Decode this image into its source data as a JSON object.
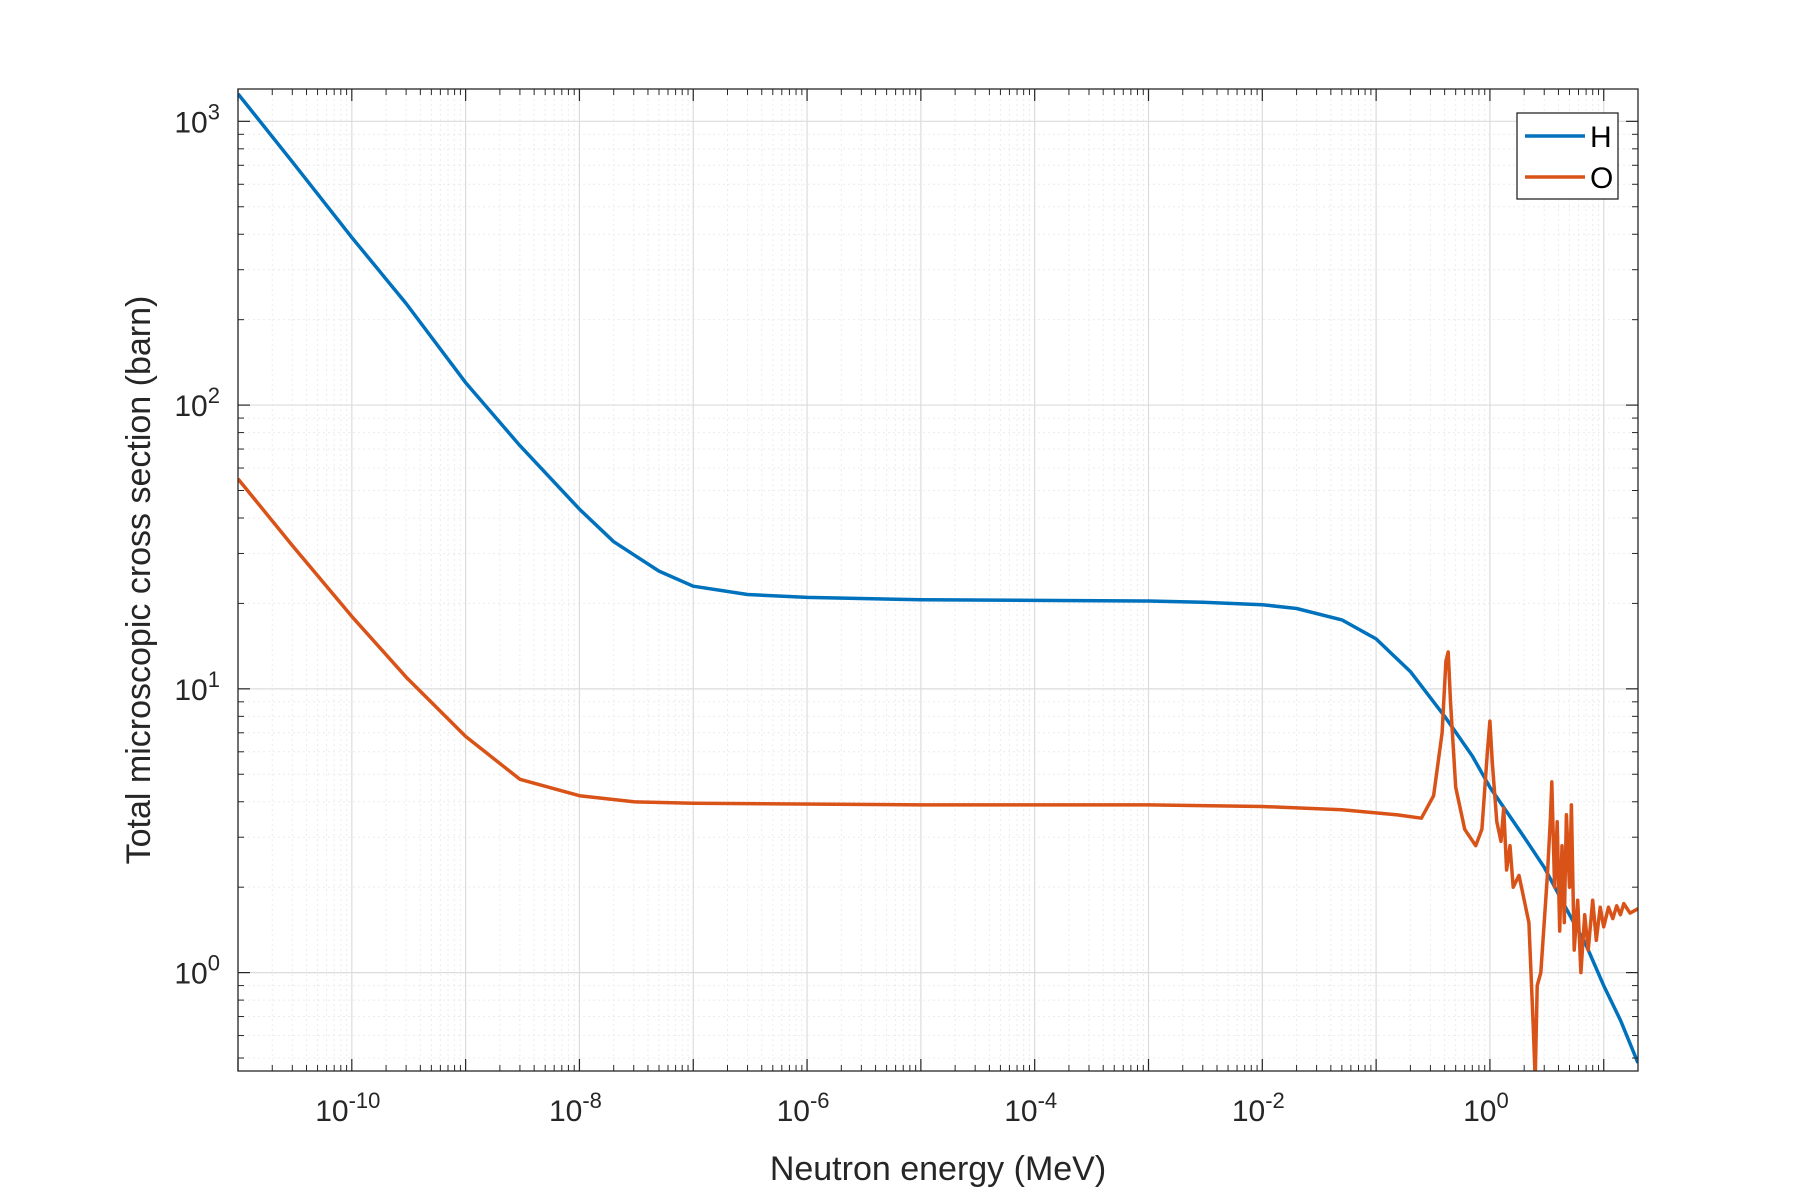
{
  "chart_data": {
    "type": "line",
    "xlabel": "Neutron energy (MeV)",
    "ylabel": "Total microscopic cross section (barn)",
    "xscale": "log",
    "yscale": "log",
    "xlim": [
      1e-11,
      20
    ],
    "ylim": [
      0.45,
      1300
    ],
    "grid": true,
    "legend_position": "top-right",
    "x_ticks": [
      {
        "base": "10",
        "exp": "-10",
        "value": 1e-10
      },
      {
        "base": "10",
        "exp": "-8",
        "value": 1e-08
      },
      {
        "base": "10",
        "exp": "-6",
        "value": 1e-06
      },
      {
        "base": "10",
        "exp": "-4",
        "value": 0.0001
      },
      {
        "base": "10",
        "exp": "-2",
        "value": 0.01
      },
      {
        "base": "10",
        "exp": "0",
        "value": 1
      }
    ],
    "y_ticks": [
      {
        "base": "10",
        "exp": "0",
        "value": 1
      },
      {
        "base": "10",
        "exp": "1",
        "value": 10
      },
      {
        "base": "10",
        "exp": "2",
        "value": 100
      },
      {
        "base": "10",
        "exp": "3",
        "value": 1000
      }
    ],
    "series": [
      {
        "name": "H",
        "color": "#0072BD",
        "points": [
          [
            1e-11,
            1250
          ],
          [
            3e-11,
            720
          ],
          [
            1e-10,
            390
          ],
          [
            3e-10,
            228
          ],
          [
            1e-09,
            120
          ],
          [
            3e-09,
            72
          ],
          [
            1e-08,
            43
          ],
          [
            2e-08,
            33
          ],
          [
            5e-08,
            26
          ],
          [
            1e-07,
            23
          ],
          [
            3e-07,
            21.5
          ],
          [
            1e-06,
            21
          ],
          [
            1e-05,
            20.6
          ],
          [
            0.0001,
            20.5
          ],
          [
            0.001,
            20.4
          ],
          [
            0.003,
            20.2
          ],
          [
            0.01,
            19.8
          ],
          [
            0.02,
            19.2
          ],
          [
            0.05,
            17.5
          ],
          [
            0.1,
            15
          ],
          [
            0.2,
            11.5
          ],
          [
            0.4,
            8
          ],
          [
            0.7,
            5.8
          ],
          [
            1,
            4.5
          ],
          [
            2,
            3
          ],
          [
            3,
            2.35
          ],
          [
            5,
            1.6
          ],
          [
            7,
            1.25
          ],
          [
            10,
            0.9
          ],
          [
            14,
            0.68
          ],
          [
            20,
            0.48
          ]
        ]
      },
      {
        "name": "O",
        "color": "#D95319",
        "points": [
          [
            1e-11,
            55
          ],
          [
            3e-11,
            32
          ],
          [
            1e-10,
            18
          ],
          [
            3e-10,
            11
          ],
          [
            1e-09,
            6.8
          ],
          [
            3e-09,
            4.8
          ],
          [
            1e-08,
            4.2
          ],
          [
            3e-08,
            4.0
          ],
          [
            1e-07,
            3.95
          ],
          [
            1e-05,
            3.9
          ],
          [
            0.001,
            3.9
          ],
          [
            0.01,
            3.85
          ],
          [
            0.05,
            3.75
          ],
          [
            0.15,
            3.6
          ],
          [
            0.25,
            3.5
          ],
          [
            0.32,
            4.2
          ],
          [
            0.38,
            7
          ],
          [
            0.41,
            12.5
          ],
          [
            0.43,
            13.5
          ],
          [
            0.45,
            9
          ],
          [
            0.5,
            4.5
          ],
          [
            0.6,
            3.2
          ],
          [
            0.75,
            2.8
          ],
          [
            0.85,
            3.2
          ],
          [
            0.95,
            6
          ],
          [
            1.0,
            7.7
          ],
          [
            1.05,
            5.5
          ],
          [
            1.15,
            3.4
          ],
          [
            1.25,
            2.9
          ],
          [
            1.32,
            3.8
          ],
          [
            1.4,
            2.3
          ],
          [
            1.5,
            2.8
          ],
          [
            1.6,
            2.0
          ],
          [
            1.8,
            2.2
          ],
          [
            2.0,
            1.8
          ],
          [
            2.2,
            1.5
          ],
          [
            2.4,
            0.65
          ],
          [
            2.5,
            0.42
          ],
          [
            2.6,
            0.9
          ],
          [
            2.8,
            1.0
          ],
          [
            3.0,
            1.5
          ],
          [
            3.2,
            2.2
          ],
          [
            3.4,
            3.5
          ],
          [
            3.5,
            4.7
          ],
          [
            3.7,
            2.0
          ],
          [
            3.9,
            3.4
          ],
          [
            4.1,
            1.4
          ],
          [
            4.3,
            2.8
          ],
          [
            4.5,
            1.5
          ],
          [
            4.7,
            3.6
          ],
          [
            5.0,
            2.0
          ],
          [
            5.2,
            3.9
          ],
          [
            5.5,
            1.2
          ],
          [
            5.9,
            1.8
          ],
          [
            6.3,
            1.0
          ],
          [
            6.8,
            1.6
          ],
          [
            7.3,
            1.2
          ],
          [
            8.0,
            1.8
          ],
          [
            8.6,
            1.3
          ],
          [
            9.3,
            1.7
          ],
          [
            10,
            1.45
          ],
          [
            11,
            1.7
          ],
          [
            12,
            1.55
          ],
          [
            13,
            1.72
          ],
          [
            14,
            1.6
          ],
          [
            15,
            1.75
          ],
          [
            17,
            1.62
          ],
          [
            20,
            1.68
          ]
        ]
      }
    ]
  }
}
